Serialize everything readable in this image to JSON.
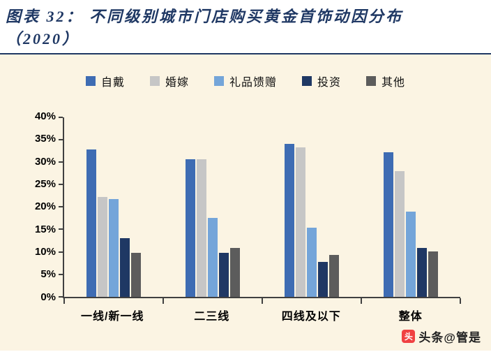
{
  "title": {
    "line1": "图表 32： 不同级别城市门店购买黄金首饰动因分布",
    "line2": "（2020）"
  },
  "watermark": {
    "text": "头条@管是",
    "icon": "toutiao-logo",
    "icon_glyph": "头",
    "icon_color": "#F04142"
  },
  "colors": {
    "title": "#1F3864",
    "panel_background": "#FBF4E3",
    "axis": "#404040"
  },
  "chart_data": {
    "type": "bar",
    "title": "不同级别城市门店购买黄金首饰动因分布（2020）",
    "categories": [
      "一线/新一线",
      "二三线",
      "四线及以下",
      "整体"
    ],
    "series": [
      {
        "name": "自戴",
        "color": "#3E6CB3",
        "values": [
          32.8,
          30.7,
          34.0,
          32.2
        ]
      },
      {
        "name": "婚嫁",
        "color": "#C6C6C6",
        "values": [
          22.3,
          30.7,
          33.3,
          28.0
        ]
      },
      {
        "name": "礼品馈赠",
        "color": "#74A5D9",
        "values": [
          21.7,
          17.5,
          15.4,
          19.0
        ]
      },
      {
        "name": "投资",
        "color": "#1F3864",
        "values": [
          13.0,
          9.8,
          7.7,
          10.8
        ]
      },
      {
        "name": "其他",
        "color": "#5C5C5C",
        "values": [
          9.8,
          10.8,
          9.3,
          10.1
        ]
      }
    ],
    "xlabel": "",
    "ylabel": "",
    "ylim": [
      0,
      40
    ],
    "ytick_step": 5,
    "ytick_labels": [
      "0%",
      "5%",
      "10%",
      "15%",
      "20%",
      "25%",
      "30%",
      "35%",
      "40%"
    ],
    "grid": false,
    "legend_position": "top"
  }
}
